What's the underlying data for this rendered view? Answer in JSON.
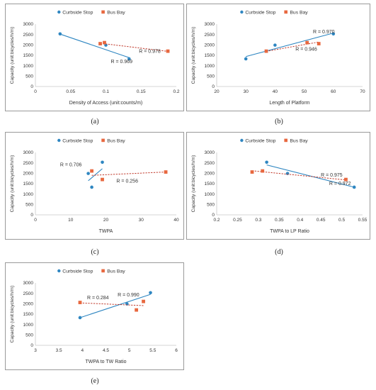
{
  "colors": {
    "curbside": "#2E86C1",
    "busbay": "#E8683F",
    "axis": "#c8c8c8",
    "text": "#333333"
  },
  "chart_data": [
    {
      "caption": "(a)",
      "type": "scatter",
      "legend": [
        "Curbside Stop",
        "Bus Bay"
      ],
      "xlabel": "Density of Access (unit:counts/m)",
      "ylabel": "Capacity (unit:bicycles/h/m)",
      "xlim": [
        0,
        0.2
      ],
      "ylim": [
        0,
        3000
      ],
      "xticks": [
        0,
        0.05,
        0.1,
        0.15,
        0.2
      ],
      "xtick_labels": [
        "0",
        "0.05",
        "0.1",
        "0.15",
        "0.2"
      ],
      "yticks": [
        0,
        500,
        1000,
        1500,
        2000,
        2500,
        3000
      ],
      "ytick_labels": [
        "0",
        "500",
        "1000",
        "1500",
        "2000",
        "2500",
        "3000"
      ],
      "series": [
        {
          "name": "Curbside Stop",
          "x": [
            0.035,
            0.1,
            0.133
          ],
          "y": [
            2530,
            1990,
            1330
          ],
          "trend": {
            "x": [
              0.035,
              0.133
            ],
            "y": [
              2520,
              1390
            ]
          },
          "r_label": "R = 0.969",
          "label_at": [
            0.107,
            1120
          ]
        },
        {
          "name": "Bus Bay",
          "x": [
            0.092,
            0.098,
            0.188
          ],
          "y": [
            2060,
            2110,
            1700
          ],
          "trend": {
            "x": [
              0.092,
              0.188
            ],
            "y": [
              2080,
              1690
            ]
          },
          "r_label": "R = 0.978",
          "label_at": [
            0.147,
            1620
          ]
        }
      ]
    },
    {
      "caption": "(b)",
      "type": "scatter",
      "legend": [
        "Curbside Stop",
        "Bus Bay"
      ],
      "xlabel": "Length of Platform",
      "ylabel": "Capacity (unit:bicycles/h/m)",
      "xlim": [
        20,
        70
      ],
      "ylim": [
        0,
        3000
      ],
      "xticks": [
        20,
        30,
        40,
        50,
        60,
        70
      ],
      "xtick_labels": [
        "20",
        "30",
        "40",
        "50",
        "60",
        "70"
      ],
      "yticks": [
        0,
        500,
        1000,
        1500,
        2000,
        2500,
        3000
      ],
      "ytick_labels": [
        "0",
        "500",
        "1000",
        "1500",
        "2000",
        "2500",
        "3000"
      ],
      "series": [
        {
          "name": "Curbside Stop",
          "x": [
            30,
            40,
            60
          ],
          "y": [
            1330,
            1990,
            2530
          ],
          "trend": {
            "x": [
              30,
              60
            ],
            "y": [
              1440,
              2570
            ]
          },
          "r_label": "R = 0.970",
          "label_at": [
            53,
            2560
          ]
        },
        {
          "name": "Bus Bay",
          "x": [
            37,
            51,
            55
          ],
          "y": [
            1700,
            2110,
            2060
          ],
          "trend": {
            "x": [
              37,
              55
            ],
            "y": [
              1690,
              2140
            ]
          },
          "r_label": "R = 0.946",
          "label_at": [
            47,
            1720
          ]
        }
      ]
    },
    {
      "caption": "(c)",
      "type": "scatter",
      "legend": [
        "Curbside Stop",
        "Bus Bay"
      ],
      "xlabel": "TWPA",
      "ylabel": "Capacity (unit:bicycles/h/m)",
      "xlim": [
        0,
        40
      ],
      "ylim": [
        0,
        3000
      ],
      "xticks": [
        0,
        10,
        20,
        30,
        40
      ],
      "xtick_labels": [
        "0",
        "10",
        "20",
        "30",
        "40"
      ],
      "yticks": [
        0,
        500,
        1000,
        1500,
        2000,
        2500,
        3000
      ],
      "ytick_labels": [
        "0",
        "500",
        "1000",
        "1500",
        "2000",
        "2500",
        "3000"
      ],
      "series": [
        {
          "name": "Curbside Stop",
          "x": [
            15,
            16,
            19
          ],
          "y": [
            1990,
            1330,
            2530
          ],
          "trend": {
            "x": [
              15,
              19
            ],
            "y": [
              1640,
              2220
            ]
          },
          "r_label": "R = 0.706",
          "label_at": [
            7,
            2340
          ]
        },
        {
          "name": "Bus Bay",
          "x": [
            16,
            19,
            37
          ],
          "y": [
            2110,
            1700,
            2060
          ],
          "trend": {
            "x": [
              16,
              37
            ],
            "y": [
              1900,
              2060
            ]
          },
          "r_label": "R = 0.256",
          "label_at": [
            23,
            1550
          ]
        }
      ]
    },
    {
      "caption": "(d)",
      "type": "scatter",
      "legend": [
        "Curbside Stop",
        "Bus Bay"
      ],
      "xlabel": "TWPA to LP Ratio",
      "ylabel": "Capacity (unit:bicycles/h/m)",
      "xlim": [
        0.2,
        0.55
      ],
      "ylim": [
        0,
        3000
      ],
      "xticks": [
        0.2,
        0.25,
        0.3,
        0.35,
        0.4,
        0.45,
        0.5,
        0.55
      ],
      "xtick_labels": [
        "0.2",
        "0.25",
        "0.3",
        "0.35",
        "0.4",
        "0.45",
        "0.5",
        "0.55"
      ],
      "yticks": [
        0,
        500,
        1000,
        1500,
        2000,
        2500,
        3000
      ],
      "ytick_labels": [
        "0",
        "500",
        "1000",
        "1500",
        "2000",
        "2500",
        "3000"
      ],
      "series": [
        {
          "name": "Curbside Stop",
          "x": [
            0.32,
            0.37,
            0.53
          ],
          "y": [
            2530,
            1990,
            1330
          ],
          "trend": {
            "x": [
              0.32,
              0.53
            ],
            "y": [
              2400,
              1330
            ]
          },
          "r_label": "R = 0.972",
          "label_at": [
            0.47,
            1430
          ]
        },
        {
          "name": "Bus Bay",
          "x": [
            0.285,
            0.31,
            0.51
          ],
          "y": [
            2060,
            2110,
            1700
          ],
          "trend": {
            "x": [
              0.285,
              0.51
            ],
            "y": [
              2120,
              1680
            ]
          },
          "r_label": "R = 0.975",
          "label_at": [
            0.45,
            1840
          ]
        }
      ]
    },
    {
      "caption": "(e)",
      "type": "scatter",
      "legend": [
        "Curbside Stop",
        "Bus Bay"
      ],
      "xlabel": "TWPA to TW Ratio",
      "ylabel": "Capacity (unit:bicycles/h/m)",
      "xlim": [
        3,
        6
      ],
      "ylim": [
        0,
        3000
      ],
      "xticks": [
        3,
        3.5,
        4,
        4.5,
        5,
        5.5,
        6
      ],
      "xtick_labels": [
        "3",
        "3.5",
        "4",
        "4.5",
        "5",
        "5.5",
        "6"
      ],
      "yticks": [
        0,
        500,
        1000,
        1500,
        2000,
        2500,
        3000
      ],
      "ytick_labels": [
        "0",
        "500",
        "1000",
        "1500",
        "2000",
        "2500",
        "3000"
      ],
      "series": [
        {
          "name": "Curbside Stop",
          "x": [
            3.95,
            4.95,
            5.45
          ],
          "y": [
            1330,
            1990,
            2530
          ],
          "trend": {
            "x": [
              3.95,
              5.45
            ],
            "y": [
              1330,
              2450
            ]
          },
          "r_label": "R = 0.990",
          "label_at": [
            4.75,
            2350
          ]
        },
        {
          "name": "Bus Bay",
          "x": [
            3.95,
            5.15,
            5.3
          ],
          "y": [
            2060,
            1700,
            2110
          ],
          "trend": {
            "x": [
              3.95,
              5.3
            ],
            "y": [
              2040,
              1910
            ]
          },
          "r_label": "R = 0.284",
          "label_at": [
            4.1,
            2220
          ]
        }
      ]
    }
  ]
}
